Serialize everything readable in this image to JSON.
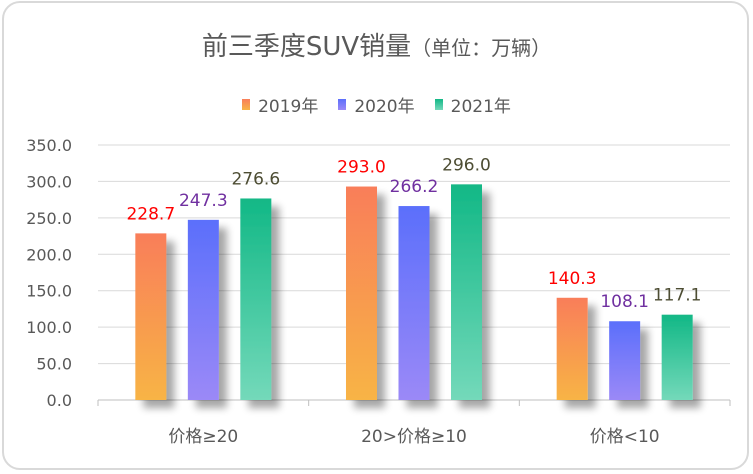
{
  "chart_data": {
    "type": "bar",
    "title": "前三季度SUV销量",
    "title_unit": "（单位：万辆）",
    "categories": [
      "价格≥20",
      "20>价格≥10",
      "价格<10"
    ],
    "series": [
      {
        "name": "2019年",
        "values": [
          228.7,
          293.0,
          140.3
        ],
        "color_top": "#f97e5a",
        "color_bottom": "#f8b445",
        "label_color": "#ff0000"
      },
      {
        "name": "2020年",
        "values": [
          247.3,
          266.2,
          108.1
        ],
        "color_top": "#5b6ffb",
        "color_bottom": "#9b89f7",
        "label_color": "#7030a0"
      },
      {
        "name": "2021年",
        "values": [
          276.6,
          296.0,
          117.1
        ],
        "color_top": "#12b886",
        "color_bottom": "#74d9ba",
        "label_color": "#4d4d33"
      }
    ],
    "ylim": [
      0,
      350
    ],
    "yticks": [
      "0.0",
      "50.0",
      "100.0",
      "150.0",
      "200.0",
      "250.0",
      "300.0",
      "350.0"
    ],
    "ytick_values": [
      0,
      50,
      100,
      150,
      200,
      250,
      300,
      350
    ],
    "xlabel": "",
    "ylabel": "",
    "grid": true,
    "legend_position": "top-center"
  }
}
